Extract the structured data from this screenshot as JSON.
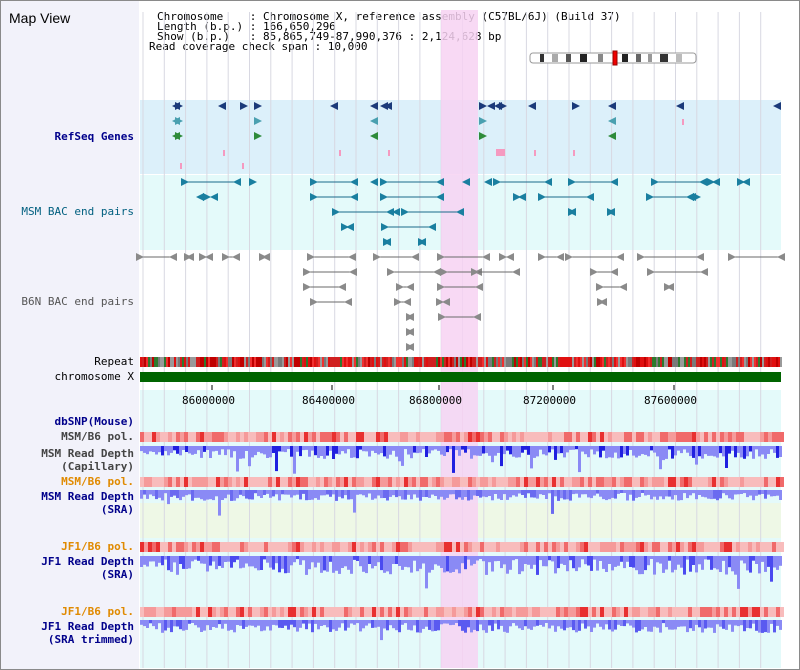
{
  "page_title": "Map View",
  "info": {
    "line1": "Chromosome    : Chromosome X, reference assembly (C57BL/6J) (Build 37)",
    "line2": "Length (b.p.) : 166,650,296",
    "line3": "Show (b.p.)   : 85,865,749-87,990,376 : 2,124,628 bp",
    "line4": "Read coverage check span : 10,000"
  },
  "tracks": {
    "refseq": "RefSeq Genes",
    "msm_bac": "MSM BAC end pairs",
    "b6n_bac": "B6N BAC end pairs",
    "repeat": "Repeat",
    "chromosome": "chromosome X",
    "dbsnp": "dbSNP(Mouse)",
    "msm_b6_pol_gray": "MSM/B6 pol.",
    "msm_depth_cap_1": "MSM Read Depth",
    "msm_depth_cap_2": "(Capillary)",
    "msm_b6_pol": "MSM/B6 pol.",
    "msm_depth_sra_1": "MSM Read Depth",
    "msm_depth_sra_2": "(SRA)",
    "jf1_b6_pol_1": "JF1/B6 pol.",
    "jf1_depth_sra_1": "JF1 Read Depth",
    "jf1_depth_sra_2": "(SRA)",
    "jf1_b6_pol_2": "JF1/B6 pol.",
    "jf1_depth_trim_1": "JF1 Read Depth",
    "jf1_depth_trim_2": "(SRA trimmed)"
  },
  "axis": {
    "ticks": [
      "86000000",
      "86400000",
      "86800000",
      "87200000",
      "87600000"
    ]
  },
  "colors": {
    "refseq_band": "#dcf0fa",
    "bac_band": "#e4fafa",
    "highlight": "#f7d2f2",
    "chromosome_bar": "#006400",
    "depth_blue": "#3c3cf0",
    "depth_light": "#8a8af5",
    "pol_red": "#f05050",
    "label_blue": "#00008b",
    "label_orange": "#e08a00"
  }
}
